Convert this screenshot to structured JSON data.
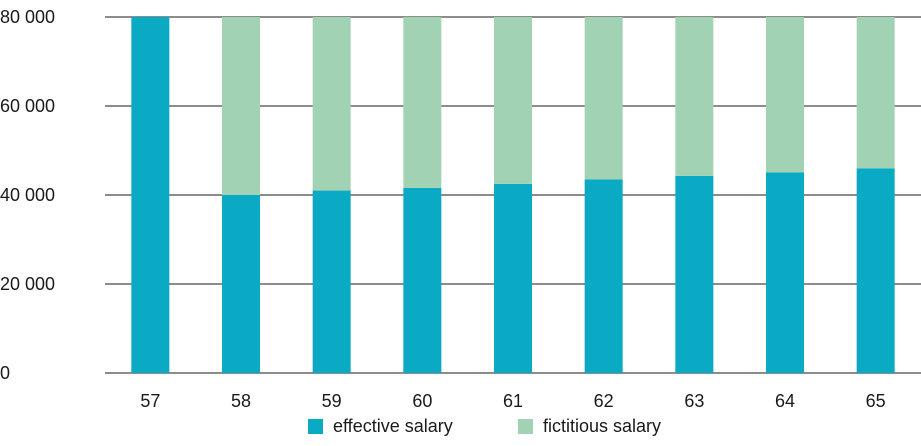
{
  "chart_data": {
    "type": "bar",
    "stacked": true,
    "title": "",
    "xlabel": "",
    "ylabel": "",
    "categories": [
      "57",
      "58",
      "59",
      "60",
      "61",
      "62",
      "63",
      "64",
      "65"
    ],
    "ylim": [
      0,
      80000
    ],
    "yticks": [
      0,
      20000,
      40000,
      60000,
      80000
    ],
    "ytick_labels": [
      "0",
      "20 000",
      "40 000",
      "60 000",
      "80 000"
    ],
    "grid": true,
    "legend_position": "bottom",
    "series": [
      {
        "name": "effective salary",
        "color": "#0aaac4",
        "values": [
          80000,
          40000,
          41000,
          41600,
          42500,
          43500,
          44300,
          45100,
          46000
        ]
      },
      {
        "name": "fictitious salary",
        "color": "#a2d2b4",
        "values": [
          0,
          40000,
          39000,
          38400,
          37500,
          36500,
          35700,
          34900,
          34000
        ]
      }
    ]
  }
}
